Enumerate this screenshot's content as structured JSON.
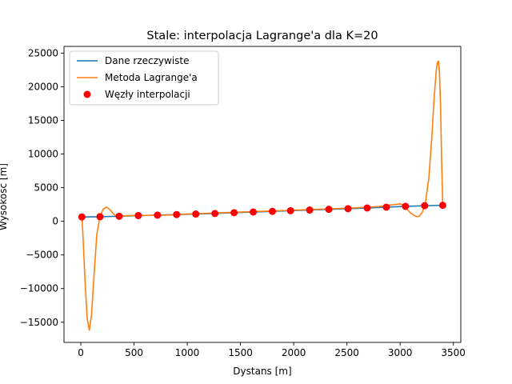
{
  "chart_data": {
    "type": "line",
    "title": "Stale: interpolacja Lagrange'a dla K=20",
    "xlabel": "Dystans [m]",
    "ylabel": "Wysokość [m]",
    "xlim": [
      -158,
      3570
    ],
    "ylim": [
      -18000,
      26000
    ],
    "xticks": [
      0,
      500,
      1000,
      1500,
      2000,
      2500,
      3000,
      3500
    ],
    "yticks": [
      -15000,
      -10000,
      -5000,
      0,
      5000,
      10000,
      15000,
      20000,
      25000
    ],
    "grid": false,
    "legend_position": "upper-left",
    "colors": {
      "real": "#1f77b4",
      "lagrange": "#ff7f0e",
      "nodes": "#ff0000"
    },
    "legend": [
      "Dane rzeczywiste",
      "Metoda Lagrange'a",
      "Węzły interpolacji"
    ],
    "series": [
      {
        "name": "Dane rzeczywiste",
        "x": [
          10,
          180,
          360,
          540,
          720,
          900,
          1080,
          1260,
          1440,
          1620,
          1800,
          1970,
          2150,
          2330,
          2510,
          2690,
          2870,
          3050,
          3230,
          3400
        ],
        "y": [
          650,
          680,
          750,
          850,
          920,
          1000,
          1080,
          1160,
          1280,
          1380,
          1480,
          1580,
          1680,
          1780,
          1880,
          1980,
          2100,
          2220,
          2320,
          2380
        ]
      },
      {
        "name": "Metoda Lagrange'a",
        "x": [
          10,
          20,
          40,
          60,
          80,
          100,
          120,
          150,
          180,
          210,
          240,
          270,
          300,
          330,
          360,
          400,
          450,
          500,
          600,
          800,
          1000,
          1500,
          2000,
          2500,
          2800,
          2950,
          3000,
          3030,
          3060,
          3100,
          3150,
          3180,
          3210,
          3240,
          3270,
          3300,
          3320,
          3340,
          3350,
          3360,
          3370,
          3380,
          3390,
          3400
        ],
        "y": [
          650,
          -2000,
          -9000,
          -14500,
          -16200,
          -14000,
          -9000,
          -2000,
          700,
          1800,
          2100,
          1800,
          1200,
          800,
          750,
          800,
          850,
          870,
          870,
          920,
          1080,
          1380,
          1650,
          1950,
          2200,
          2500,
          2600,
          2400,
          1900,
          1200,
          700,
          750,
          1400,
          3000,
          6500,
          13000,
          18500,
          22500,
          23600,
          23800,
          22000,
          17000,
          9000,
          2400
        ]
      },
      {
        "name": "Węzły interpolacji",
        "type": "scatter",
        "x": [
          10,
          180,
          360,
          540,
          720,
          900,
          1080,
          1260,
          1440,
          1620,
          1800,
          1970,
          2150,
          2330,
          2510,
          2690,
          2870,
          3050,
          3230,
          3400
        ],
        "y": [
          650,
          680,
          750,
          850,
          920,
          1000,
          1080,
          1160,
          1280,
          1380,
          1480,
          1580,
          1680,
          1780,
          1880,
          1980,
          2100,
          2220,
          2320,
          2380
        ]
      }
    ]
  }
}
